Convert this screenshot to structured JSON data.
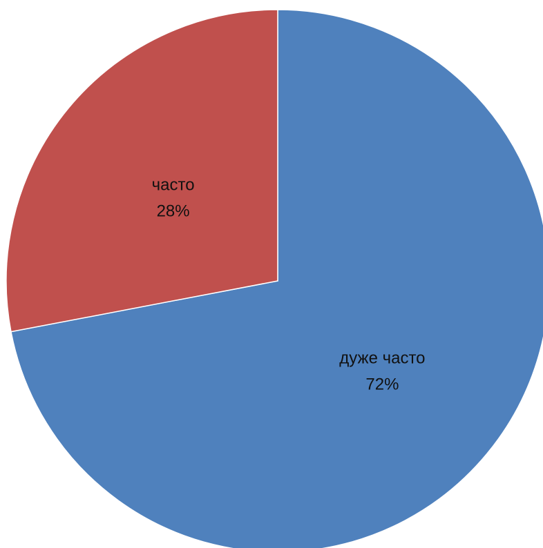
{
  "chart_data": {
    "type": "pie",
    "title": "",
    "start_angle_deg": 0,
    "direction": "clockwise",
    "slices": [
      {
        "label": "дуже часто",
        "value": 72,
        "percent_label": "72%",
        "color": "#4F81BD"
      },
      {
        "label": "часто",
        "value": 28,
        "percent_label": "28%",
        "color": "#C0504D"
      }
    ],
    "legend": "none",
    "data_labels": "category-and-percent-inside"
  }
}
